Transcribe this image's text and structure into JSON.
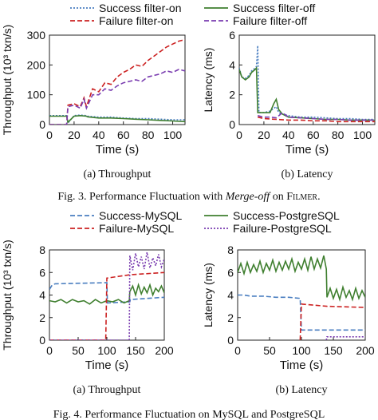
{
  "fig3": {
    "legend": [
      "Success filter-on",
      "Success filter-off",
      "Failure filter-on",
      "Failure filter-off"
    ],
    "caption_prefix": "Fig. 3.  Performance Fluctuation with ",
    "caption_em": "Merge-off",
    "caption_suffix": " on ",
    "caption_sc": "Filmer",
    "caption_end": "."
  },
  "fig4": {
    "legend": [
      "Success-MySQL",
      "Success-PostgreSQL",
      "Failure-MySQL",
      "Failure-PostgreSQL"
    ],
    "caption": "Fig. 4.  Performance Fluctuation on MySQL and PostgreSQL"
  },
  "colors": {
    "success_on": "#4a7ec0",
    "success_off": "#3f7f2f",
    "failure_on": "#cc2222",
    "failure_off": "#7a3db0"
  },
  "chart_data": [
    {
      "id": "fig3a",
      "type": "line",
      "caption": "(a) Throughput",
      "xlabel": "Time (s)",
      "ylabel": "Throughput (10³ txn/s)",
      "xlim": [
        0,
        110
      ],
      "ylim": [
        0,
        300
      ],
      "xticks": [
        0,
        20,
        40,
        60,
        80,
        100
      ],
      "yticks": [
        0,
        100,
        200,
        300
      ],
      "series": [
        {
          "name": "Success filter-on",
          "color": "#4a7ec0",
          "dash": "2,2",
          "x": [
            0,
            14,
            15,
            20,
            25,
            30,
            31,
            40,
            50,
            60,
            70,
            80,
            90,
            100,
            110
          ],
          "y": [
            30,
            30,
            5,
            30,
            32,
            30,
            28,
            25,
            25,
            22,
            20,
            20,
            18,
            16,
            16
          ]
        },
        {
          "name": "Success filter-off",
          "color": "#3f7f2f",
          "dash": "",
          "x": [
            0,
            14,
            15,
            20,
            25,
            30,
            31,
            40,
            50,
            60,
            70,
            80,
            90,
            100,
            110
          ],
          "y": [
            28,
            28,
            8,
            28,
            30,
            28,
            26,
            22,
            22,
            20,
            18,
            16,
            14,
            12,
            10
          ]
        },
        {
          "name": "Failure filter-on",
          "color": "#cc2222",
          "dash": "6,3",
          "x": [
            0,
            14,
            15,
            20,
            25,
            28,
            30,
            35,
            40,
            45,
            50,
            55,
            60,
            65,
            70,
            75,
            80,
            85,
            90,
            95,
            100,
            105,
            110
          ],
          "y": [
            0,
            0,
            65,
            70,
            60,
            90,
            60,
            120,
            110,
            140,
            135,
            160,
            175,
            185,
            200,
            195,
            215,
            230,
            245,
            260,
            270,
            280,
            285
          ]
        },
        {
          "name": "Failure filter-off",
          "color": "#7a3db0",
          "dash": "6,3",
          "x": [
            0,
            14,
            15,
            20,
            25,
            28,
            30,
            35,
            40,
            45,
            50,
            55,
            60,
            65,
            70,
            75,
            80,
            85,
            90,
            95,
            100,
            105,
            110
          ],
          "y": [
            0,
            0,
            60,
            65,
            55,
            85,
            55,
            100,
            100,
            120,
            115,
            130,
            140,
            145,
            150,
            145,
            160,
            165,
            170,
            180,
            175,
            185,
            180
          ]
        }
      ]
    },
    {
      "id": "fig3b",
      "type": "line",
      "caption": "(b) Latency",
      "xlabel": "Time (s)",
      "ylabel": "Latency (ms)",
      "xlim": [
        0,
        110
      ],
      "ylim": [
        0,
        6
      ],
      "xticks": [
        0,
        20,
        40,
        60,
        80,
        100
      ],
      "yticks": [
        0,
        2,
        4,
        6
      ],
      "series": [
        {
          "name": "Success filter-on",
          "color": "#4a7ec0",
          "dash": "2,2",
          "x": [
            0,
            2,
            5,
            8,
            10,
            13,
            14,
            15,
            16,
            20,
            25,
            30,
            32,
            35,
            40,
            50,
            60,
            70,
            80,
            90,
            100,
            110
          ],
          "y": [
            3.8,
            3.2,
            3.1,
            3.3,
            3.6,
            3.8,
            3.9,
            5.3,
            0.8,
            0.8,
            0.9,
            1.2,
            0.8,
            0.7,
            0.6,
            0.5,
            0.5,
            0.45,
            0.4,
            0.4,
            0.35,
            0.35
          ]
        },
        {
          "name": "Success filter-off",
          "color": "#3f7f2f",
          "dash": "",
          "x": [
            0,
            2,
            5,
            8,
            10,
            13,
            14,
            15,
            16,
            20,
            25,
            28,
            30,
            32,
            35,
            40,
            50,
            60,
            70,
            80,
            90,
            100,
            110
          ],
          "y": [
            3.7,
            3.2,
            3.0,
            3.2,
            3.5,
            3.7,
            3.8,
            0.8,
            0.8,
            0.8,
            0.8,
            1.4,
            1.7,
            1.0,
            0.7,
            0.5,
            0.45,
            0.4,
            0.35,
            0.35,
            0.3,
            0.3,
            0.3
          ]
        },
        {
          "name": "Failure filter-on",
          "color": "#cc2222",
          "dash": "6,3",
          "x": [
            15,
            20,
            30,
            40,
            50,
            60,
            70,
            80,
            90,
            100,
            110
          ],
          "y": [
            0.5,
            0.4,
            0.35,
            0.3,
            0.3,
            0.25,
            0.25,
            0.2,
            0.2,
            0.2,
            0.2
          ]
        },
        {
          "name": "Failure filter-off",
          "color": "#7a3db0",
          "dash": "6,3",
          "x": [
            15,
            20,
            25,
            30,
            35,
            40,
            50,
            60,
            70,
            80,
            90,
            100,
            110
          ],
          "y": [
            0.6,
            0.5,
            0.5,
            0.45,
            0.8,
            0.5,
            0.45,
            0.4,
            0.35,
            0.35,
            0.3,
            0.3,
            0.3
          ]
        }
      ]
    },
    {
      "id": "fig4a",
      "type": "line",
      "caption": "(a) Throughput",
      "xlabel": "Time (s)",
      "ylabel": "Throughput (10³ txn/s)",
      "xlim": [
        0,
        200
      ],
      "ylim": [
        0,
        8
      ],
      "xticks": [
        0,
        50,
        100,
        150,
        200
      ],
      "yticks": [
        0,
        2,
        4,
        6,
        8
      ],
      "series": [
        {
          "name": "Success-MySQL",
          "color": "#4a7ec0",
          "dash": "6,3",
          "x": [
            0,
            5,
            10,
            100,
            101,
            140,
            141,
            200
          ],
          "y": [
            4.5,
            4.9,
            5.0,
            5.1,
            3.3,
            3.4,
            3.6,
            3.8
          ]
        },
        {
          "name": "Success-PostgreSQL",
          "color": "#3f7f2f",
          "dash": "",
          "x": [
            0,
            10,
            20,
            30,
            40,
            50,
            60,
            70,
            80,
            90,
            100,
            110,
            120,
            130,
            139,
            140,
            145,
            150,
            155,
            160,
            165,
            170,
            175,
            180,
            185,
            190,
            195,
            200
          ],
          "y": [
            3.5,
            3.4,
            3.6,
            3.3,
            3.6,
            3.4,
            3.5,
            3.2,
            3.6,
            3.3,
            3.5,
            3.4,
            3.6,
            3.3,
            3.5,
            4.3,
            4.8,
            4.0,
            4.9,
            4.1,
            4.7,
            4.2,
            4.9,
            4.0,
            4.6,
            4.3,
            4.8,
            4.2
          ]
        },
        {
          "name": "Failure-MySQL",
          "color": "#cc2222",
          "dash": "6,3",
          "x": [
            0,
            98,
            100,
            140,
            200
          ],
          "y": [
            0,
            0,
            5.5,
            5.8,
            6.0
          ]
        },
        {
          "name": "Failure-PostgreSQL",
          "color": "#7a3db0",
          "dash": "2,2",
          "x": [
            0,
            139,
            140,
            145,
            150,
            155,
            160,
            165,
            170,
            175,
            180,
            185,
            190,
            195,
            200
          ],
          "y": [
            0,
            0,
            7.5,
            6.2,
            7.7,
            6.5,
            7.4,
            6.3,
            7.8,
            6.4,
            7.3,
            6.6,
            7.6,
            6.5,
            7.2
          ]
        }
      ]
    },
    {
      "id": "fig4b",
      "type": "line",
      "caption": "(b) Latency",
      "xlabel": "Time (s)",
      "ylabel": "Latency (ms)",
      "xlim": [
        0,
        200
      ],
      "ylim": [
        0,
        8
      ],
      "xticks": [
        0,
        50,
        100,
        150,
        200
      ],
      "yticks": [
        0,
        2,
        4,
        6,
        8
      ],
      "series": [
        {
          "name": "Success-MySQL",
          "color": "#4a7ec0",
          "dash": "6,3",
          "x": [
            0,
            10,
            20,
            40,
            60,
            80,
            98,
            100,
            140,
            200
          ],
          "y": [
            4.0,
            4.0,
            3.9,
            3.9,
            3.8,
            3.8,
            3.7,
            0.9,
            0.9,
            0.9
          ]
        },
        {
          "name": "Success-PostgreSQL",
          "color": "#3f7f2f",
          "dash": "",
          "x": [
            0,
            5,
            10,
            15,
            20,
            25,
            30,
            35,
            40,
            45,
            50,
            55,
            60,
            65,
            70,
            75,
            80,
            85,
            90,
            95,
            100,
            105,
            110,
            115,
            120,
            125,
            130,
            135,
            139,
            140,
            145,
            150,
            155,
            160,
            165,
            170,
            175,
            180,
            185,
            190,
            195,
            200
          ],
          "y": [
            6.0,
            6.8,
            5.9,
            6.9,
            6.0,
            6.7,
            6.1,
            7.0,
            6.0,
            6.8,
            6.2,
            7.1,
            6.1,
            6.9,
            6.2,
            7.0,
            6.3,
            7.2,
            6.1,
            6.9,
            6.3,
            7.2,
            6.2,
            7.4,
            6.3,
            7.2,
            6.4,
            7.5,
            6.3,
            3.8,
            4.6,
            3.7,
            4.5,
            3.6,
            4.7,
            3.8,
            4.4,
            3.6,
            4.6,
            3.7,
            4.4,
            3.8
          ]
        },
        {
          "name": "Failure-MySQL",
          "color": "#cc2222",
          "dash": "6,3",
          "x": [
            98,
            100,
            140,
            200
          ],
          "y": [
            0,
            3.2,
            3.0,
            2.9
          ]
        },
        {
          "name": "Failure-PostgreSQL",
          "color": "#7a3db0",
          "dash": "2,2",
          "x": [
            139,
            140,
            200
          ],
          "y": [
            0,
            0.3,
            0.3
          ]
        }
      ]
    }
  ]
}
